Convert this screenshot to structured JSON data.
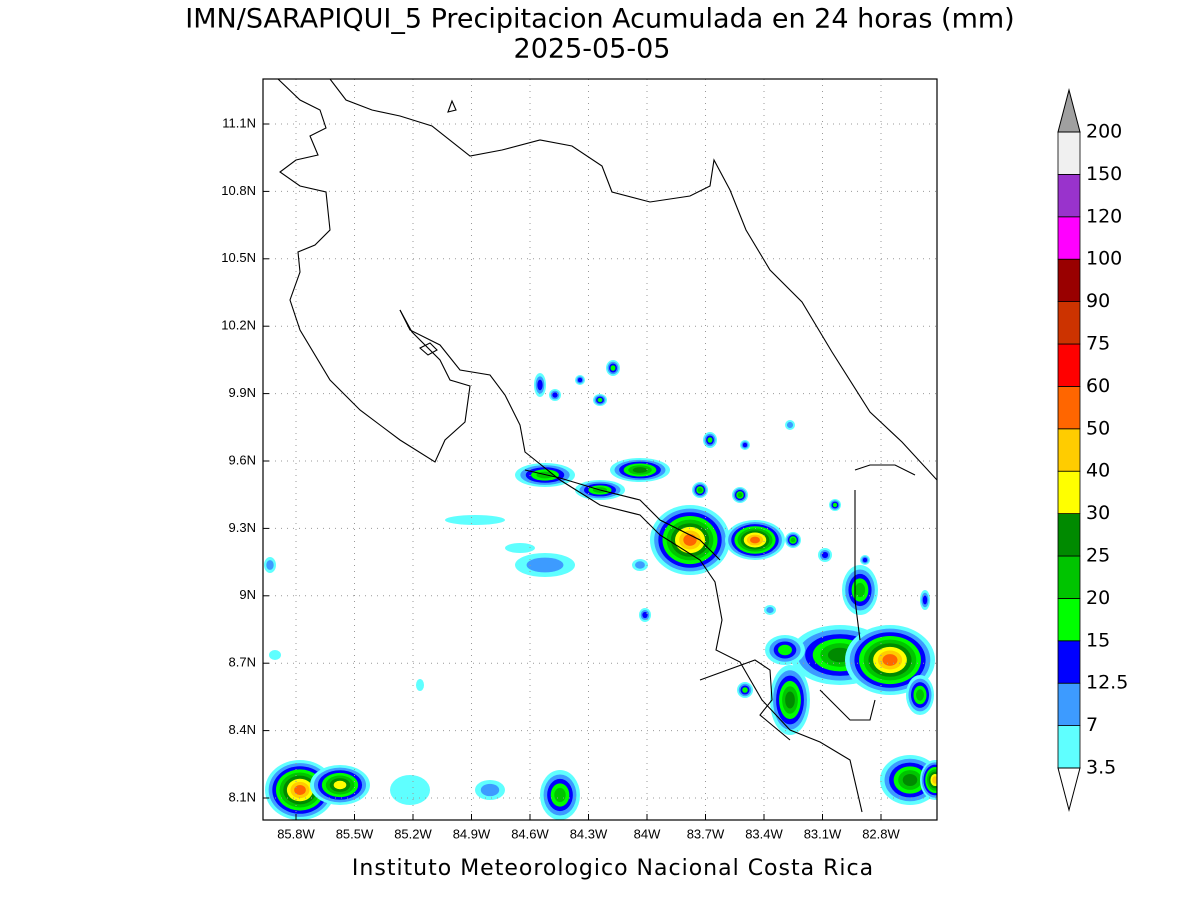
{
  "title": "IMN/SARAPIQUI_5 Precipitacion Acumulada en 24 horas (mm)",
  "subtitle": "2025-05-05",
  "footer": "Instituto Meteorologico Nacional Costa Rica",
  "map": {
    "lat_ticks": [
      "11.1N",
      "10.8N",
      "10.5N",
      "10.2N",
      "9.9N",
      "9.6N",
      "9.3N",
      "9N",
      "8.7N",
      "8.4N",
      "8.1N"
    ],
    "lon_ticks": [
      "85.8W",
      "85.5W",
      "85.2W",
      "84.9W",
      "84.6W",
      "84.3W",
      "84W",
      "83.7W",
      "83.4W",
      "83.1W",
      "82.8W"
    ]
  },
  "colorbar": {
    "levels": [
      3.5,
      7,
      12.5,
      15,
      20,
      25,
      30,
      40,
      50,
      60,
      75,
      90,
      100,
      120,
      150,
      200
    ],
    "colors": [
      "#5fffff",
      "#3d9bff",
      "#0000ff",
      "#00ff00",
      "#00c400",
      "#008a00",
      "#ffff00",
      "#ffcc00",
      "#ff6600",
      "#ff0000",
      "#cc3300",
      "#990000",
      "#ff00ff",
      "#9933cc",
      "#f0f0f0"
    ],
    "under_color": "#ffffff",
    "over_color": "#a0a0a0"
  }
}
